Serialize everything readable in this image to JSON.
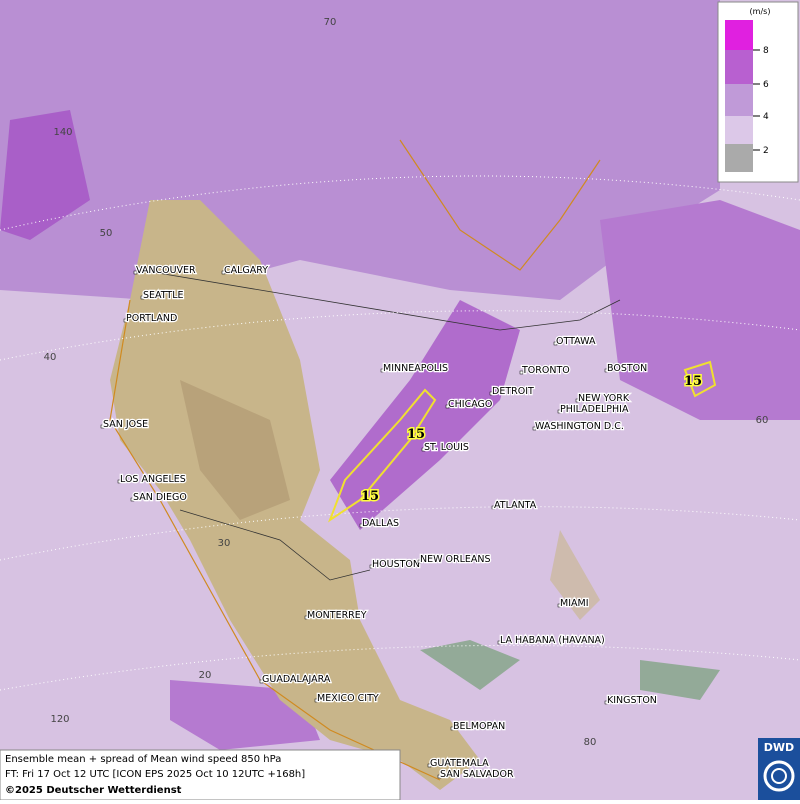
{
  "map": {
    "graticule_labels": [
      "70",
      "140",
      "50",
      "40",
      "30",
      "20",
      "120",
      "80",
      "60"
    ],
    "cities": [
      "VANCOUVER",
      "CALGARY",
      "SEATTLE",
      "PORTLAND",
      "MINNEAPOLIS",
      "OTTAWA",
      "TORONTO",
      "DETROIT",
      "CHICAGO",
      "BOSTON",
      "NEW YORK",
      "PHILADELPHIA",
      "WASHINGTON D.C.",
      "ST. LOUIS",
      "SAN JOSE",
      "LOS ANGELES",
      "SAN DIEGO",
      "DALLAS",
      "ATLANTA",
      "HOUSTON",
      "NEW ORLEANS",
      "MIAMI",
      "LA HABANA (HAVANA)",
      "MONTERREY",
      "GUADALAJARA",
      "MEXICO CITY",
      "KINGSTON",
      "BELMOPAN",
      "GUATEMALA",
      "SAN SALVADOR"
    ],
    "contour_labels": [
      "15",
      "15",
      "15"
    ],
    "legend": {
      "unit": "(m/s)",
      "ticks": [
        8,
        6,
        4,
        2
      ]
    },
    "caption": [
      "Ensemble mean + spread of Mean wind speed 850 hPa",
      "FT: Fri 17 Oct 12 UTC [ICON EPS 2025 Oct 10 12UTC +168h]",
      "©2025 Deutscher Wetterdienst"
    ],
    "logo": "DWD"
  }
}
